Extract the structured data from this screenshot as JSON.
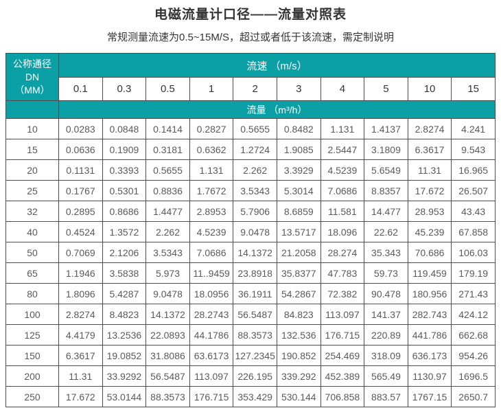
{
  "page": {
    "title": "电磁流量计口径——流量对照表",
    "subtitle": "常规测量流速为0.5~15M/S，超过或者低于该流速，需定制说明"
  },
  "colors": {
    "header_teal": "#0ba0a6",
    "cell_border": "#4c4c4c",
    "data_text": "#595959"
  },
  "table": {
    "corner_header_line1": "公称通径DN",
    "corner_header_line2": "（MM）",
    "velocity_header": "流速 （m/s）",
    "flow_header": "流量 （m³/h）",
    "velocity_columns": [
      "0.1",
      "0.3",
      "0.5",
      "1",
      "2",
      "3",
      "4",
      "5",
      "10",
      "15"
    ],
    "rows": [
      {
        "dn": "10",
        "values": [
          "0.0283",
          "0.0848",
          "0.1414",
          "0.2827",
          "0.5655",
          "0.8482",
          "1.131",
          "1.4137",
          "2.8274",
          "4.241"
        ]
      },
      {
        "dn": "15",
        "values": [
          "0.0636",
          "0.1909",
          "0.3181",
          "0.6362",
          "1.2724",
          "1.9085",
          "2.5447",
          "3.1809",
          "6.3617",
          "9.543"
        ]
      },
      {
        "dn": "20",
        "values": [
          "0.1131",
          "0.3393",
          "0.5655",
          "1.131",
          "2.262",
          "3.3929",
          "4.5239",
          "5.6549",
          "11.31",
          "16.965"
        ]
      },
      {
        "dn": "25",
        "values": [
          "0.1767",
          "0.5301",
          "0.8836",
          "1.7672",
          "3.5343",
          "5.3014",
          "7.0686",
          "8.8357",
          "17.672",
          "26.507"
        ]
      },
      {
        "dn": "32",
        "values": [
          "0.2895",
          "0.8686",
          "1.4477",
          "2.8953",
          "5.7906",
          "8.6859",
          "11.581",
          "14.477",
          "28.953",
          "43.43"
        ]
      },
      {
        "dn": "40",
        "values": [
          "0.4524",
          "1.3572",
          "2.262",
          "4.5239",
          "9.0478",
          "13.5717",
          "18.096",
          "22.62",
          "45.239",
          "67.858"
        ]
      },
      {
        "dn": "50",
        "values": [
          "0.7069",
          "2.1206",
          "3.5343",
          "7.0686",
          "14.1372",
          "21.2058",
          "28.274",
          "35.343",
          "70.686",
          "106.03"
        ]
      },
      {
        "dn": "65",
        "values": [
          "1.1946",
          "3.5838",
          "5.973",
          "11..9459",
          "23.8918",
          "35.8377",
          "47.783",
          "59.73",
          "119.459",
          "179.19"
        ]
      },
      {
        "dn": "80",
        "values": [
          "1.8096",
          "5.4287",
          "9.0478",
          "18.0956",
          "36.1911",
          "54.2867",
          "72.382",
          "90.478",
          "180.956",
          "271.43"
        ]
      },
      {
        "dn": "100",
        "values": [
          "2.8274",
          "8.4823",
          "14.1372",
          "28.2743",
          "56.5487",
          "84.823",
          "113.097",
          "141.37",
          "282.743",
          "424.12"
        ]
      },
      {
        "dn": "125",
        "values": [
          "4.4179",
          "13.2536",
          "22.0893",
          "44.1786",
          "88.3573",
          "132.536",
          "176.715",
          "220.89",
          "441.786",
          "662.68"
        ]
      },
      {
        "dn": "150",
        "values": [
          "6.3617",
          "19.0852",
          "31.8086",
          "63.6173",
          "127.2345",
          "190.852",
          "254.469",
          "318.09",
          "636.173",
          "954.26"
        ]
      },
      {
        "dn": "200",
        "values": [
          "11.31",
          "33.9292",
          "56.5487",
          "113.097",
          "226.195",
          "339.292",
          "452.389",
          "565.49",
          "1130.97",
          "1696.5"
        ]
      },
      {
        "dn": "250",
        "values": [
          "17.672",
          "53.0144",
          "88.3573",
          "176.715",
          "353.429",
          "530.144",
          "706.858",
          "883.57",
          "1767.15",
          "2650.7"
        ]
      }
    ]
  }
}
